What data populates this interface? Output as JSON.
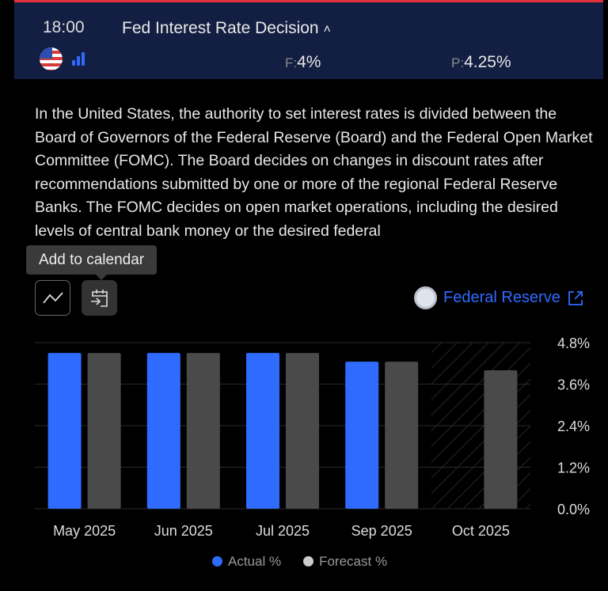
{
  "header": {
    "time": "18:00",
    "title": "Fed Interest Rate Decision",
    "forecast_label": "F:",
    "forecast_value": "4%",
    "previous_label": "P:",
    "previous_value": "4.25%",
    "country": "us-flag-icon",
    "importance_bars": 3
  },
  "description": "In the United States, the authority to set interest rates is divided between the Board of Governors of the Federal Reserve (Board) and the Federal Open Market Committee (FOMC). The Board decides on changes in discount rates after recommendations submitted by one or more of the regional Federal Reserve Banks. The FOMC decides on open market operations, including the desired levels of central bank money or the desired federal",
  "tooltip": "Add to calendar",
  "source": {
    "label": "Federal Reserve"
  },
  "colors": {
    "actual": "#2f6bff",
    "forecast": "#4a4a4a",
    "header": "#131f42",
    "accent": "#e0303a"
  },
  "chart_data": {
    "type": "bar",
    "categories": [
      "May 2025",
      "Jun 2025",
      "Jul 2025",
      "Sep 2025",
      "Oct 2025"
    ],
    "series": [
      {
        "name": "Actual %",
        "values": [
          4.5,
          4.5,
          4.5,
          4.25,
          null
        ]
      },
      {
        "name": "Forecast %",
        "values": [
          4.5,
          4.5,
          4.5,
          4.25,
          4.0
        ]
      }
    ],
    "ylim": [
      0,
      4.8
    ],
    "yticks": [
      "0.0%",
      "1.2%",
      "2.4%",
      "3.6%",
      "4.8%"
    ],
    "legend": "bottom",
    "grid": true,
    "hatched_category": "Oct 2025"
  }
}
